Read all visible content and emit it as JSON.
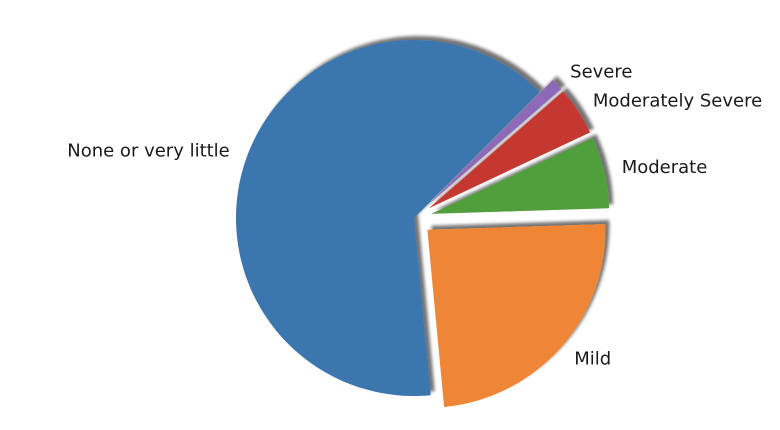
{
  "chart_data": {
    "type": "pie",
    "title": "",
    "shadow": true,
    "counterclock": true,
    "colors_note": "matplotlib tab palette",
    "slices": [
      {
        "label": "None or very little",
        "value": 64.0,
        "color": "#3a76af",
        "exploded": false
      },
      {
        "label": "Mild",
        "value": 24.0,
        "color": "#ef8636",
        "exploded": true
      },
      {
        "label": "Moderate",
        "value": 6.5,
        "color": "#519e3e",
        "exploded": true
      },
      {
        "label": "Moderately Severe",
        "value": 4.4,
        "color": "#c53932",
        "exploded": true
      },
      {
        "label": "Severe",
        "value": 1.1,
        "color": "#8d69b8",
        "exploded": true
      }
    ]
  }
}
